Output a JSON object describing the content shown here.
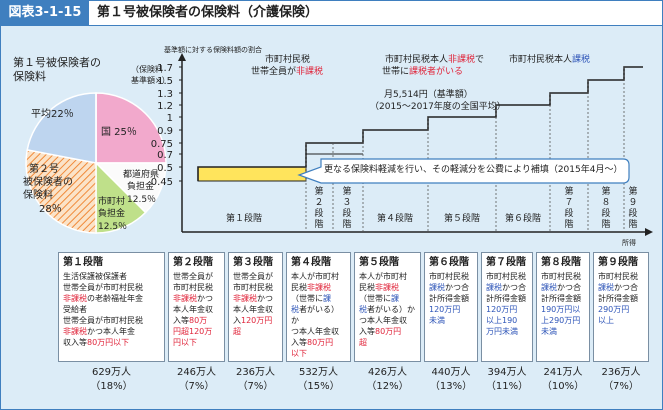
{
  "header": {
    "tag": "図表3-1-15",
    "title": "第１号被保険者の保険料（介護保険）"
  },
  "pie": {
    "title": [
      "第１号被保険者の",
      "保険料"
    ],
    "segments": [
      {
        "label": "国",
        "value": 25,
        "display": "国 25％",
        "color": "#f2a9cc"
      },
      {
        "label": "都道府県負担金",
        "value": 12.5,
        "display": [
          "都道府県",
          "負担金",
          "12.5％"
        ],
        "color": "#fbfbfb"
      },
      {
        "label": "市町村負担金",
        "value": 12.5,
        "display": [
          "市町村",
          "負担金",
          "12.5％"
        ],
        "color": "#bfe08a"
      },
      {
        "label": "第２号被保険者の保険料",
        "value": 28,
        "display": [
          "第２号",
          "被保険者の",
          "保険料",
          "28％"
        ],
        "color": "#fbd8b5"
      },
      {
        "label": "第１号被保険者の保険料",
        "value": 22,
        "display": "平均22％",
        "color": "#bed5ef"
      }
    ]
  },
  "chart_data": {
    "type": "step",
    "ylabel_top": "基準額に対する保険料額の割合",
    "ylabel": [
      "（保険料",
      "基準額×）"
    ],
    "y_ticks": [
      "1.7",
      "1.5",
      "1.3",
      "1.2",
      "1",
      "0.9",
      "0.75",
      "0.7",
      "0.5",
      "0.45"
    ],
    "xlabel": "所得",
    "stages": [
      {
        "name": "第１段階",
        "before": 0.5,
        "after": 0.45
      },
      {
        "name": "第２段階",
        "before": 0.75,
        "after": 0.7
      },
      {
        "name": "第３段階",
        "before": 0.75,
        "after": 0.7
      },
      {
        "name": "第４段階",
        "value": 0.9
      },
      {
        "name": "第５段階",
        "value": 1.0
      },
      {
        "name": "第６段階",
        "value": 1.2
      },
      {
        "name": "第７段階",
        "value": 1.3
      },
      {
        "name": "第８段階",
        "value": 1.5
      },
      {
        "name": "第９段階",
        "value": 1.7
      }
    ],
    "annotations": {
      "zone1": [
        "市町村民税",
        "世帯全員が非課税"
      ],
      "zone2": [
        "市町村民税本人非課税で",
        "世帯に課税者がいる"
      ],
      "zone3": "市町村民税本人課税",
      "base": [
        "月5,514円（基準額）",
        "（2015～2017年度の全国平均）"
      ],
      "reduction": "更なる保険料軽減を行い、その軽減分を公費により補填（2015年4月～）"
    }
  },
  "stage_boxes": [
    {
      "title": "第１段階",
      "lines": [
        [
          "生活保護被保護者"
        ],
        [
          "世帯全員が市町村民税"
        ],
        [
          [
            "非課税",
            "red"
          ],
          "の老齢福祉年金"
        ],
        [
          "受給者"
        ],
        [
          "世帯全員が市町村民税"
        ],
        [
          [
            "非課税",
            "red"
          ],
          "かつ本人年金"
        ],
        [
          "収入等",
          [
            "80万円以下",
            "red"
          ]
        ]
      ],
      "pop": "629万人",
      "pct": "（18%）"
    },
    {
      "title": "第２段階",
      "lines": [
        [
          "世帯全員が"
        ],
        [
          "市町村民税"
        ],
        [
          [
            "非課税",
            "red"
          ],
          "かつ"
        ],
        [
          "本人年金収"
        ],
        [
          "入等",
          [
            "80万",
            "red"
          ]
        ],
        [
          [
            "円超120万",
            "red"
          ]
        ],
        [
          [
            "円以下",
            "red"
          ]
        ]
      ],
      "pop": "246万人",
      "pct": "（7%）"
    },
    {
      "title": "第３段階",
      "lines": [
        [
          "世帯全員が"
        ],
        [
          "市町村民税"
        ],
        [
          [
            "非課税",
            "red"
          ],
          "かつ"
        ],
        [
          "本人年金収"
        ],
        [
          "入",
          [
            "120万円",
            "red"
          ]
        ],
        [
          [
            "超",
            "red"
          ]
        ]
      ],
      "pop": "236万人",
      "pct": "（7%）"
    },
    {
      "title": "第４段階",
      "lines": [
        [
          "本人が市町村"
        ],
        [
          "民税",
          [
            "非課税",
            "red"
          ]
        ],
        [
          "（世帯に",
          [
            "課",
            "blue"
          ]
        ],
        [
          [
            "税",
            "blue"
          ],
          "者がいる）か"
        ],
        [
          "つ本人年金収"
        ],
        [
          "入等",
          [
            "80万円",
            "red"
          ]
        ],
        [
          [
            "以下",
            "red"
          ]
        ]
      ],
      "pop": "532万人",
      "pct": "（15%）"
    },
    {
      "title": "第５段階",
      "lines": [
        [
          "本人が市町村"
        ],
        [
          "民税",
          [
            "非課税",
            "red"
          ]
        ],
        [
          "（世帯に",
          [
            "課",
            "blue"
          ]
        ],
        [
          [
            "税",
            "blue"
          ],
          "者がいる）か"
        ],
        [
          "つ本人年金収"
        ],
        [
          "入等",
          [
            "80万円",
            "red"
          ]
        ],
        [
          [
            "超",
            "red"
          ]
        ]
      ],
      "pop": "426万人",
      "pct": "（12%）"
    },
    {
      "title": "第６段階",
      "lines": [
        [
          "市町村民税"
        ],
        [
          [
            "課税",
            "blue"
          ],
          "かつ合"
        ],
        [
          "計所得金額"
        ],
        [
          [
            "120万円",
            "blue"
          ]
        ],
        [
          [
            "未満",
            "blue"
          ]
        ]
      ],
      "pop": "440万人",
      "pct": "（13%）"
    },
    {
      "title": "第７段階",
      "lines": [
        [
          "市町村民税"
        ],
        [
          [
            "課税",
            "blue"
          ],
          "かつ合"
        ],
        [
          "計所得金額"
        ],
        [
          [
            "120万円",
            "blue"
          ]
        ],
        [
          [
            "以上190",
            "blue"
          ]
        ],
        [
          [
            "万円未満",
            "blue"
          ]
        ]
      ],
      "pop": "394万人",
      "pct": "（11%）"
    },
    {
      "title": "第８段階",
      "lines": [
        [
          "市町村民税"
        ],
        [
          [
            "課税",
            "blue"
          ],
          "かつ合"
        ],
        [
          "計所得金額"
        ],
        [
          [
            "190万円以",
            "blue"
          ]
        ],
        [
          [
            "上290万円",
            "blue"
          ]
        ],
        [
          [
            "未満",
            "blue"
          ]
        ]
      ],
      "pop": "241万人",
      "pct": "（10%）"
    },
    {
      "title": "第９段階",
      "lines": [
        [
          "市町村民税"
        ],
        [
          [
            "課税",
            "blue"
          ],
          "かつ合"
        ],
        [
          "計所得金額"
        ],
        [
          [
            "290万円",
            "blue"
          ]
        ],
        [
          [
            "以上",
            "blue"
          ]
        ]
      ],
      "pop": "236万人",
      "pct": "（7%）"
    }
  ]
}
